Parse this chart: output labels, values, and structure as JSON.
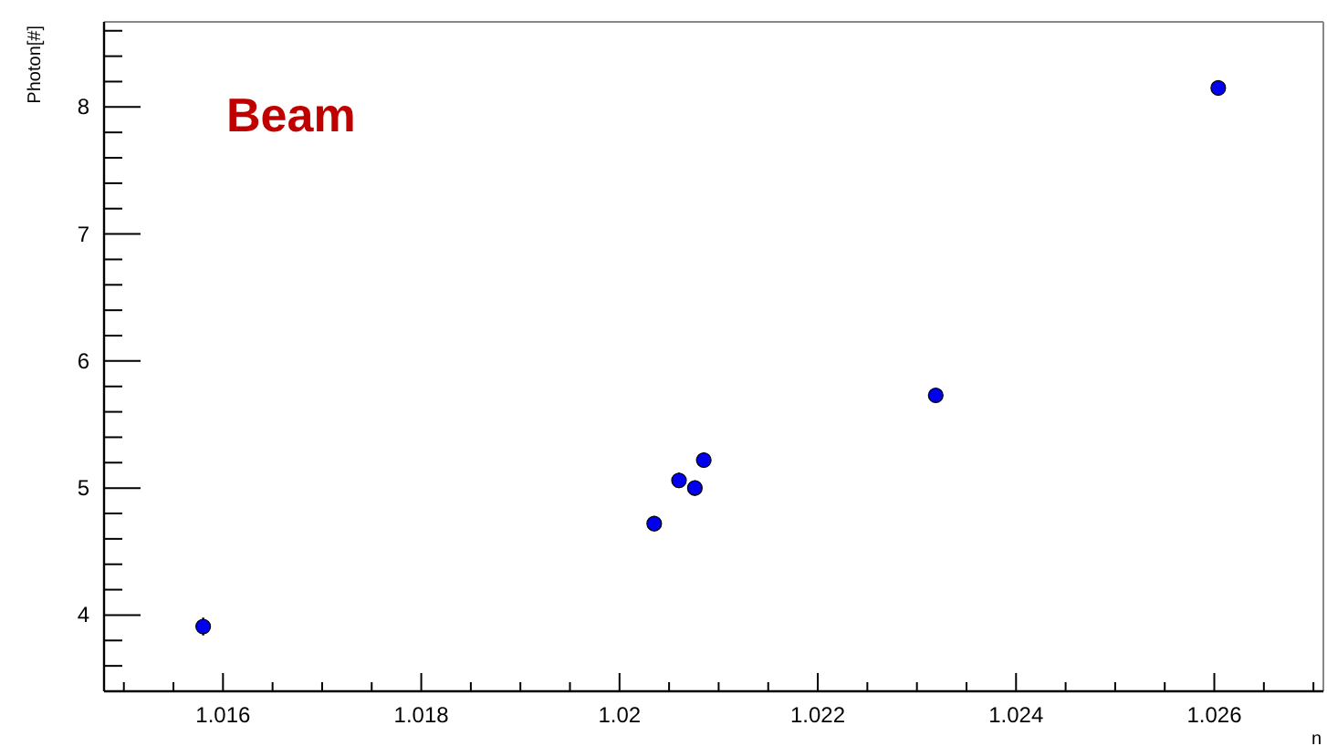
{
  "chart_data": {
    "type": "scatter",
    "xlabel": "n",
    "ylabel": "Photon[#]",
    "annotations": [
      "Beam"
    ],
    "x": [
      1.0158,
      1.02035,
      1.0206,
      1.02076,
      1.02085,
      1.02319,
      1.02604
    ],
    "values": [
      3.91,
      4.72,
      5.06,
      5.0,
      5.22,
      5.73,
      8.15
    ],
    "errors": [
      0.07,
      0.06,
      0.06,
      0.06,
      0.06,
      0.06,
      0.06
    ],
    "color": "#0000ee",
    "marker": "circle",
    "xlim": [
      1.0148,
      1.0271
    ],
    "ylim": [
      3.4,
      8.67
    ],
    "xticks": [
      {
        "value": 1.015,
        "label": null
      },
      {
        "value": 1.0155,
        "label": null
      },
      1.016,
      {
        "value": 1.0165,
        "label": null
      },
      {
        "value": 1.017,
        "label": null
      },
      {
        "value": 1.0175,
        "label": null
      },
      1.018,
      {
        "value": 1.0185,
        "label": null
      },
      {
        "value": 1.019,
        "label": null
      },
      {
        "value": 1.0195,
        "label": null
      },
      1.02,
      {
        "value": 1.0205,
        "label": null
      },
      {
        "value": 1.021,
        "label": null
      },
      {
        "value": 1.0215,
        "label": null
      },
      1.022,
      {
        "value": 1.0225,
        "label": null
      },
      {
        "value": 1.023,
        "label": null
      },
      {
        "value": 1.0235,
        "label": null
      },
      1.024,
      {
        "value": 1.0245,
        "label": null
      },
      {
        "value": 1.025,
        "label": null
      },
      {
        "value": 1.0255,
        "label": null
      },
      1.026,
      {
        "value": 1.0265,
        "label": null
      },
      {
        "value": 1.027,
        "label": null
      }
    ],
    "yticks": [
      {
        "value": 3.6,
        "label": null
      },
      {
        "value": 3.8,
        "label": null
      },
      4,
      {
        "value": 4.2,
        "label": null
      },
      {
        "value": 4.4,
        "label": null
      },
      {
        "value": 4.6,
        "label": null
      },
      {
        "value": 4.8,
        "label": null
      },
      5,
      {
        "value": 5.2,
        "label": null
      },
      {
        "value": 5.4,
        "label": null
      },
      {
        "value": 5.6,
        "label": null
      },
      {
        "value": 5.8,
        "label": null
      },
      6,
      {
        "value": 6.2,
        "label": null
      },
      {
        "value": 6.4,
        "label": null
      },
      {
        "value": 6.6,
        "label": null
      },
      {
        "value": 6.8,
        "label": null
      },
      7,
      {
        "value": 7.2,
        "label": null
      },
      {
        "value": 7.4,
        "label": null
      },
      {
        "value": 7.6,
        "label": null
      },
      {
        "value": 7.8,
        "label": null
      },
      8,
      {
        "value": 8.2,
        "label": null
      },
      {
        "value": 8.4,
        "label": null
      },
      {
        "value": 8.6,
        "label": null
      }
    ]
  }
}
